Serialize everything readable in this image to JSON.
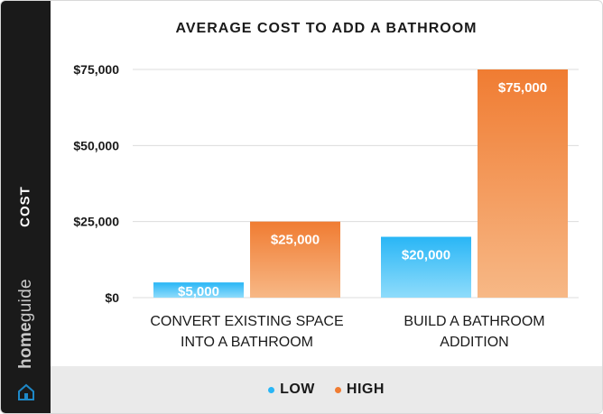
{
  "chart_data": {
    "type": "bar",
    "title": "AVERAGE COST TO ADD A BATHROOM",
    "ylabel": "COST",
    "xlabel": "",
    "categories": [
      [
        "CONVERT EXISTING SPACE",
        "INTO A BATHROOM"
      ],
      [
        "BUILD A BATHROOM",
        "ADDITION"
      ]
    ],
    "series": [
      {
        "name": "LOW",
        "values": [
          5000,
          20000
        ],
        "labels": [
          "$5,000",
          "$20,000"
        ],
        "color": "#29b6f6",
        "color_light": "#8fdcfb"
      },
      {
        "name": "HIGH",
        "values": [
          25000,
          75000
        ],
        "labels": [
          "$25,000",
          "$75,000"
        ],
        "color": "#f07c32",
        "color_light": "#f7b886"
      }
    ],
    "ylim": [
      0,
      75000
    ],
    "yticks": [
      0,
      25000,
      50000,
      75000
    ],
    "ytick_labels": [
      "$0",
      "$25,000",
      "$50,000",
      "$75,000"
    ],
    "grid": true,
    "legend": "bottom-center"
  },
  "brand": {
    "part1": "home",
    "part2": "guide",
    "icon": "house-icon"
  }
}
